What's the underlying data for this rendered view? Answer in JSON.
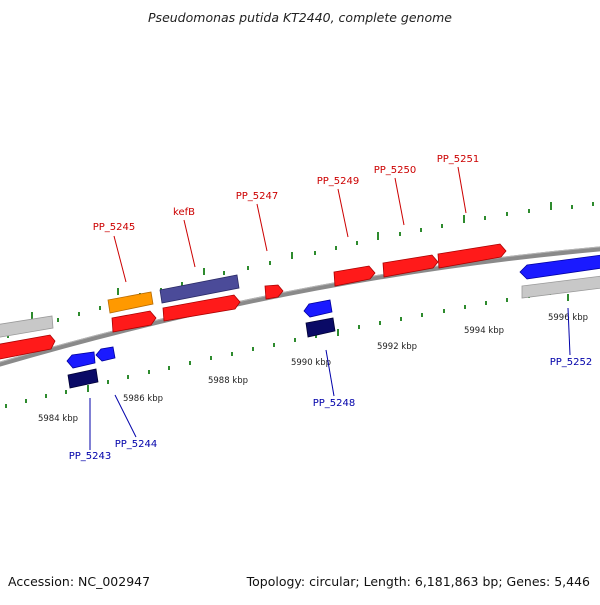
{
  "title": "Pseudomonas putida KT2440, complete genome",
  "footer": {
    "accession": "Accession: NC_002947",
    "summary": "Topology: circular; Length: 6,181,863 bp; Genes: 5,446"
  },
  "colors": {
    "background": "#ffffff",
    "backbone": "#8a8a8a",
    "tick": "#2e8b2e",
    "label_forward": "#cc0000",
    "label_reverse": "#0000aa",
    "gene_red": "#ff1a1a",
    "gene_blue": "#1a1aff",
    "gene_navy": "#0a0a66",
    "gene_slate": "#4b4b99",
    "gene_orange": "#ff9900",
    "gene_gray": "#c8c8c8"
  },
  "ticks": {
    "upper_track": [],
    "lower_track": [
      {
        "label": "5984 kbp"
      },
      {
        "label": "5986 kbp"
      },
      {
        "label": "5988 kbp"
      },
      {
        "label": "5990 kbp"
      },
      {
        "label": "5992 kbp"
      },
      {
        "label": "5994 kbp"
      },
      {
        "label": "5996 kbp"
      }
    ]
  },
  "gene_labels_forward": [
    "PP_5245",
    "kefB",
    "PP_5247",
    "PP_5249",
    "PP_5250",
    "PP_5251"
  ],
  "gene_labels_reverse": [
    "PP_5243",
    "PP_5244",
    "PP_5248",
    "PP_5252"
  ]
}
